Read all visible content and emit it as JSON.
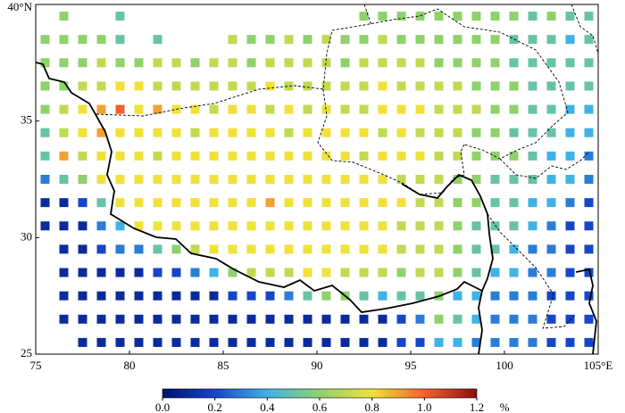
{
  "chart_data": {
    "type": "heatmap",
    "x": [
      75.5,
      76.5,
      77.5,
      78.5,
      79.5,
      80.5,
      81.5,
      82.5,
      83.5,
      84.5,
      85.5,
      86.5,
      87.5,
      88.5,
      89.5,
      90.5,
      91.5,
      92.5,
      93.5,
      94.5,
      95.5,
      96.5,
      97.5,
      98.5,
      99.5,
      100.5,
      101.5,
      102.5,
      103.5,
      104.5
    ],
    "y": [
      39.5,
      38.5,
      37.5,
      36.5,
      35.5,
      34.5,
      33.5,
      32.5,
      31.5,
      30.5,
      29.5,
      28.5,
      27.5,
      26.5,
      25.5
    ],
    "values": [
      [
        null,
        0.6,
        null,
        null,
        0.5,
        null,
        null,
        null,
        null,
        null,
        null,
        null,
        null,
        null,
        null,
        null,
        null,
        0.6,
        0.6,
        0.6,
        0.6,
        0.6,
        0.6,
        0.6,
        0.6,
        0.6,
        0.5,
        0.6,
        0.5,
        0.5
      ],
      [
        0.6,
        0.6,
        0.6,
        0.6,
        0.5,
        null,
        0.5,
        null,
        null,
        null,
        0.7,
        0.6,
        0.6,
        0.7,
        0.6,
        0.7,
        0.6,
        0.6,
        0.7,
        0.6,
        0.6,
        0.6,
        0.6,
        0.6,
        0.6,
        0.5,
        0.5,
        0.5,
        0.4,
        0.5
      ],
      [
        0.6,
        0.6,
        0.6,
        0.7,
        0.6,
        0.6,
        0.7,
        0.7,
        0.6,
        0.7,
        0.7,
        0.6,
        0.7,
        0.7,
        0.7,
        0.7,
        0.6,
        0.7,
        0.7,
        0.7,
        0.7,
        0.6,
        0.6,
        0.6,
        0.6,
        0.5,
        0.5,
        0.5,
        0.5,
        0.5
      ],
      [
        0.6,
        0.6,
        0.7,
        0.7,
        0.8,
        0.8,
        0.7,
        0.7,
        0.7,
        0.7,
        0.7,
        0.7,
        0.8,
        0.7,
        0.7,
        0.7,
        0.7,
        0.7,
        0.8,
        0.7,
        0.7,
        0.7,
        0.7,
        0.6,
        0.6,
        0.6,
        0.5,
        0.5,
        0.5,
        0.5
      ],
      [
        0.6,
        0.7,
        0.8,
        0.9,
        1.0,
        0.8,
        0.9,
        0.8,
        0.8,
        0.7,
        0.8,
        0.8,
        0.7,
        0.8,
        0.7,
        0.8,
        0.7,
        0.7,
        0.8,
        0.8,
        0.8,
        0.7,
        0.7,
        0.7,
        0.6,
        0.6,
        0.5,
        0.5,
        0.4,
        0.4
      ],
      [
        0.5,
        0.7,
        0.8,
        0.9,
        0.8,
        0.8,
        0.8,
        0.8,
        0.7,
        0.8,
        0.8,
        0.8,
        0.8,
        0.7,
        0.8,
        0.8,
        0.8,
        0.8,
        0.7,
        0.8,
        0.7,
        0.7,
        0.7,
        0.6,
        0.6,
        0.5,
        0.5,
        0.5,
        0.4,
        0.4
      ],
      [
        0.5,
        0.9,
        0.7,
        0.8,
        0.8,
        0.8,
        0.7,
        0.8,
        0.8,
        0.8,
        0.8,
        0.8,
        0.8,
        0.8,
        0.8,
        0.8,
        0.8,
        0.7,
        0.8,
        0.8,
        0.8,
        0.7,
        0.7,
        0.6,
        0.6,
        0.6,
        0.5,
        0.4,
        0.4,
        0.3
      ],
      [
        0.3,
        0.5,
        0.6,
        0.8,
        0.8,
        0.8,
        0.8,
        0.8,
        0.8,
        0.8,
        0.8,
        0.8,
        0.8,
        0.8,
        0.8,
        0.8,
        0.8,
        0.8,
        0.8,
        0.7,
        0.7,
        0.7,
        0.6,
        0.6,
        0.5,
        0.5,
        0.5,
        0.4,
        0.4,
        0.3
      ],
      [
        0.1,
        0.1,
        0.2,
        0.5,
        0.8,
        0.8,
        0.8,
        0.8,
        0.8,
        0.8,
        0.8,
        0.8,
        0.9,
        0.8,
        0.8,
        0.8,
        0.8,
        0.8,
        0.8,
        0.8,
        0.7,
        0.7,
        0.6,
        0.6,
        0.5,
        0.5,
        0.4,
        0.4,
        0.3,
        0.2
      ],
      [
        0.1,
        0.1,
        0.1,
        0.3,
        0.4,
        0.8,
        0.8,
        0.8,
        0.8,
        0.8,
        0.8,
        0.8,
        0.8,
        0.8,
        0.8,
        0.8,
        0.8,
        0.8,
        0.8,
        0.7,
        0.7,
        0.7,
        0.6,
        0.5,
        0.5,
        0.5,
        0.4,
        0.3,
        0.2,
        0.2
      ],
      [
        null,
        0.1,
        0.1,
        0.2,
        0.3,
        0.3,
        0.5,
        0.6,
        0.7,
        0.8,
        0.8,
        0.8,
        0.8,
        0.8,
        0.8,
        0.8,
        0.8,
        0.8,
        0.8,
        0.7,
        0.7,
        0.7,
        0.6,
        0.5,
        0.5,
        0.4,
        0.3,
        0.3,
        0.2,
        0.2
      ],
      [
        null,
        0.1,
        0.1,
        0.1,
        0.1,
        0.1,
        0.2,
        0.2,
        0.3,
        0.4,
        0.6,
        0.7,
        0.7,
        0.7,
        0.8,
        0.8,
        0.7,
        0.7,
        0.7,
        0.6,
        0.7,
        0.7,
        0.6,
        0.5,
        0.4,
        0.4,
        0.3,
        0.3,
        0.2,
        0.2
      ],
      [
        null,
        0.1,
        0.1,
        0.1,
        0.1,
        0.1,
        0.1,
        0.1,
        0.1,
        0.1,
        0.2,
        0.2,
        0.2,
        0.3,
        0.5,
        0.6,
        0.6,
        0.5,
        0.4,
        0.5,
        0.5,
        0.6,
        0.4,
        0.4,
        0.3,
        0.3,
        0.3,
        0.2,
        0.2,
        0.2
      ],
      [
        null,
        0.1,
        0.1,
        0.1,
        0.1,
        0.1,
        0.1,
        0.1,
        0.1,
        0.1,
        0.1,
        0.1,
        0.1,
        0.1,
        0.1,
        0.1,
        0.1,
        0.1,
        0.1,
        0.2,
        0.3,
        0.6,
        0.5,
        0.4,
        0.3,
        0.3,
        0.3,
        0.2,
        0.2,
        0.2
      ],
      [
        null,
        null,
        0.1,
        0.1,
        0.1,
        0.1,
        0.1,
        0.1,
        0.1,
        0.1,
        0.1,
        0.1,
        0.1,
        0.1,
        0.1,
        0.1,
        0.1,
        0.1,
        0.1,
        0.2,
        0.2,
        0.4,
        0.4,
        0.3,
        0.3,
        0.3,
        0.3,
        0.2,
        0.2,
        0.2
      ]
    ],
    "xlim": [
      75,
      105
    ],
    "ylim": [
      25,
      40
    ],
    "xticks": [
      75,
      80,
      85,
      90,
      95,
      100,
      {
        "value": 105,
        "label": "105°E"
      }
    ],
    "yticks": [
      25,
      30,
      35,
      {
        "value": 40,
        "label": "40°N"
      }
    ],
    "colors": [
      "#00106e",
      "#1546c8",
      "#3fb2e6",
      "#8fd16a",
      "#f0e23a",
      "#f2622a",
      "#8c1010"
    ],
    "colorbar": {
      "lim": [
        0,
        1.2
      ],
      "ticks": [
        {
          "value": 0,
          "label": "0.0"
        },
        {
          "value": 0.2,
          "label": "0.2"
        },
        {
          "value": 0.4,
          "label": "0.4"
        },
        {
          "value": 0.6,
          "label": "0.6"
        },
        {
          "value": 0.8,
          "label": "0.8"
        },
        {
          "value": 1.0,
          "label": "1.0"
        },
        {
          "value": 1.2,
          "label": "1.2"
        }
      ],
      "unit": "%"
    }
  }
}
